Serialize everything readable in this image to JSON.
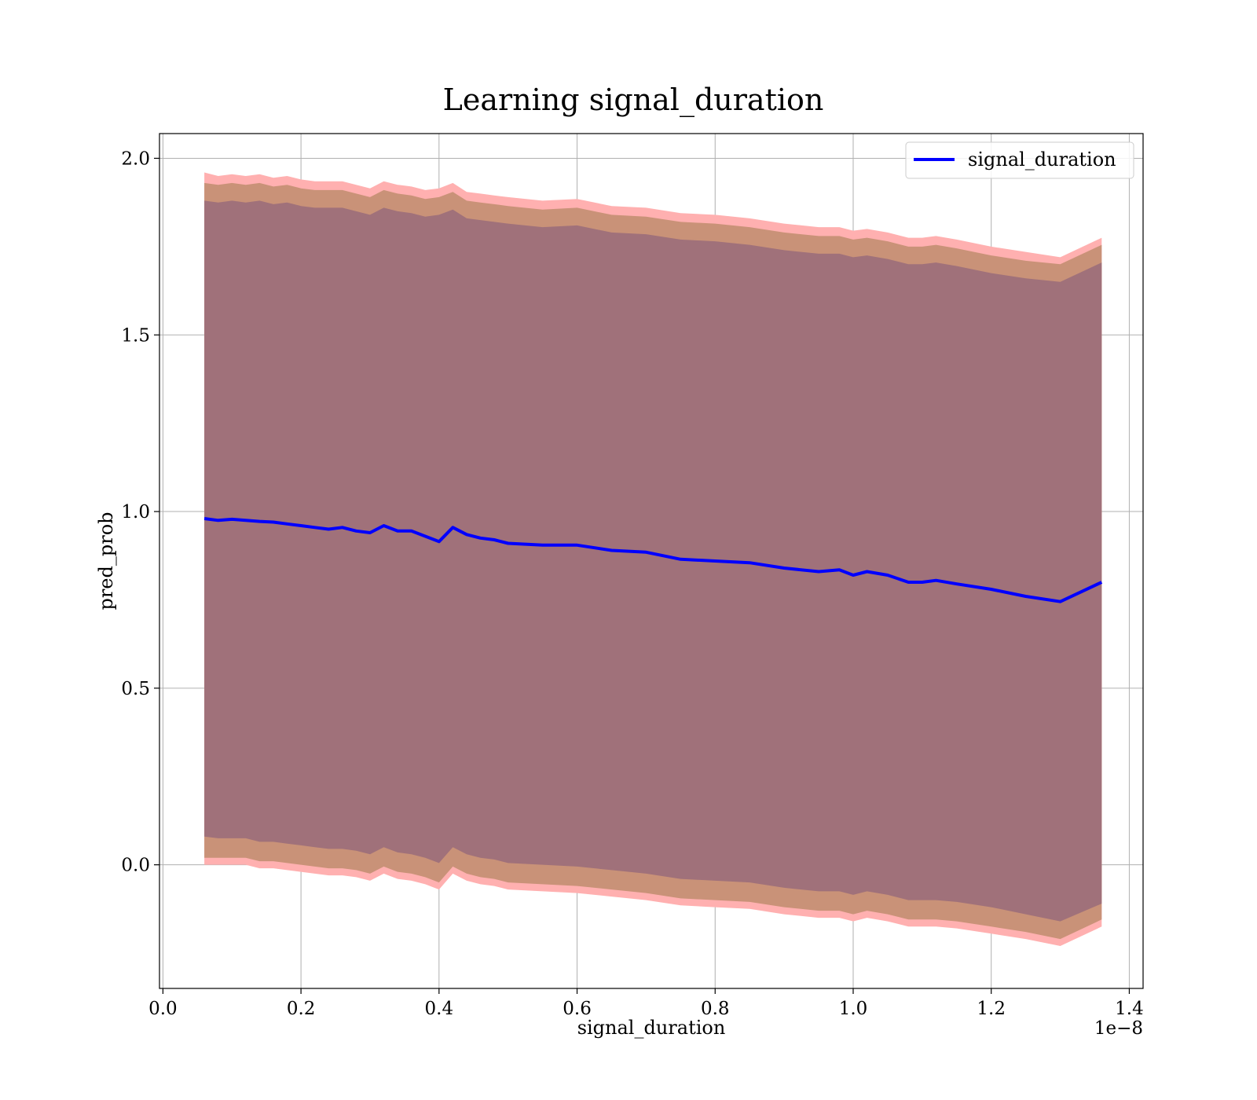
{
  "chart_data": {
    "type": "area",
    "title": "Learning signal_duration",
    "xlabel": "signal_duration",
    "ylabel": "pred_prob",
    "x_offset_label": "1e−8",
    "x_scale": 1e-08,
    "xlim": [
      -0.005,
      1.42
    ],
    "ylim": [
      -0.35,
      2.07
    ],
    "xticks": [
      0.0,
      0.2,
      0.4,
      0.6,
      0.8,
      1.0,
      1.2,
      1.4
    ],
    "xtick_labels": [
      "0.0",
      "0.2",
      "0.4",
      "0.6",
      "0.8",
      "1.0",
      "1.2",
      "1.4"
    ],
    "yticks": [
      0.0,
      0.5,
      1.0,
      1.5,
      2.0
    ],
    "ytick_labels": [
      "0.0",
      "0.5",
      "1.0",
      "1.5",
      "2.0"
    ],
    "grid": true,
    "legend": {
      "position": "upper right",
      "entries": [
        "signal_duration"
      ]
    },
    "colors": {
      "line": "#0000ff",
      "band_outer": "#ffb0b0",
      "band_middle": "#c99278",
      "band_inner": "#a0717a",
      "grid": "#b0b0b0"
    },
    "x": [
      0.06,
      0.08,
      0.1,
      0.12,
      0.14,
      0.16,
      0.18,
      0.2,
      0.22,
      0.24,
      0.26,
      0.28,
      0.3,
      0.32,
      0.34,
      0.36,
      0.38,
      0.4,
      0.42,
      0.44,
      0.46,
      0.48,
      0.5,
      0.55,
      0.6,
      0.65,
      0.7,
      0.75,
      0.8,
      0.85,
      0.9,
      0.95,
      0.98,
      1.0,
      1.02,
      1.05,
      1.08,
      1.1,
      1.12,
      1.15,
      1.2,
      1.25,
      1.3,
      1.36
    ],
    "series": [
      {
        "name": "signal_duration",
        "role": "mean",
        "values": [
          0.98,
          0.975,
          0.978,
          0.975,
          0.972,
          0.97,
          0.965,
          0.96,
          0.955,
          0.95,
          0.955,
          0.945,
          0.94,
          0.96,
          0.945,
          0.945,
          0.93,
          0.915,
          0.955,
          0.935,
          0.925,
          0.92,
          0.91,
          0.905,
          0.905,
          0.89,
          0.885,
          0.865,
          0.86,
          0.855,
          0.84,
          0.83,
          0.835,
          0.82,
          0.83,
          0.82,
          0.8,
          0.8,
          0.805,
          0.795,
          0.78,
          0.76,
          0.745,
          0.8
        ]
      },
      {
        "name": "band_outer",
        "role": "fill",
        "upper": [
          1.96,
          1.95,
          1.955,
          1.95,
          1.955,
          1.945,
          1.95,
          1.94,
          1.935,
          1.935,
          1.935,
          1.925,
          1.915,
          1.935,
          1.925,
          1.92,
          1.91,
          1.915,
          1.93,
          1.905,
          1.9,
          1.895,
          1.89,
          1.88,
          1.885,
          1.865,
          1.86,
          1.845,
          1.84,
          1.83,
          1.815,
          1.805,
          1.805,
          1.795,
          1.8,
          1.79,
          1.775,
          1.775,
          1.78,
          1.77,
          1.75,
          1.735,
          1.72,
          1.775
        ],
        "lower": [
          0.0,
          0.0,
          0.0,
          0.0,
          -0.01,
          -0.01,
          -0.015,
          -0.02,
          -0.025,
          -0.03,
          -0.03,
          -0.035,
          -0.045,
          -0.025,
          -0.04,
          -0.045,
          -0.055,
          -0.07,
          -0.025,
          -0.045,
          -0.055,
          -0.06,
          -0.07,
          -0.075,
          -0.08,
          -0.09,
          -0.1,
          -0.115,
          -0.12,
          -0.125,
          -0.14,
          -0.15,
          -0.15,
          -0.16,
          -0.15,
          -0.16,
          -0.175,
          -0.175,
          -0.175,
          -0.18,
          -0.195,
          -0.21,
          -0.23,
          -0.175
        ]
      },
      {
        "name": "band_middle",
        "role": "fill",
        "upper": [
          1.93,
          1.925,
          1.93,
          1.925,
          1.93,
          1.92,
          1.925,
          1.915,
          1.91,
          1.91,
          1.91,
          1.9,
          1.89,
          1.91,
          1.9,
          1.895,
          1.885,
          1.89,
          1.905,
          1.88,
          1.875,
          1.87,
          1.865,
          1.855,
          1.86,
          1.84,
          1.835,
          1.82,
          1.815,
          1.805,
          1.79,
          1.78,
          1.78,
          1.77,
          1.775,
          1.765,
          1.75,
          1.75,
          1.755,
          1.745,
          1.725,
          1.71,
          1.7,
          1.755
        ],
        "lower": [
          0.02,
          0.02,
          0.02,
          0.02,
          0.01,
          0.01,
          0.005,
          0.0,
          -0.005,
          -0.01,
          -0.01,
          -0.015,
          -0.025,
          -0.005,
          -0.02,
          -0.025,
          -0.035,
          -0.05,
          -0.005,
          -0.025,
          -0.035,
          -0.04,
          -0.05,
          -0.055,
          -0.06,
          -0.07,
          -0.08,
          -0.095,
          -0.1,
          -0.105,
          -0.12,
          -0.13,
          -0.13,
          -0.14,
          -0.13,
          -0.14,
          -0.155,
          -0.155,
          -0.155,
          -0.16,
          -0.175,
          -0.19,
          -0.21,
          -0.155
        ]
      },
      {
        "name": "band_inner",
        "role": "fill",
        "upper": [
          1.88,
          1.875,
          1.88,
          1.875,
          1.88,
          1.87,
          1.875,
          1.865,
          1.86,
          1.86,
          1.86,
          1.85,
          1.84,
          1.86,
          1.85,
          1.845,
          1.835,
          1.84,
          1.855,
          1.83,
          1.825,
          1.82,
          1.815,
          1.805,
          1.81,
          1.79,
          1.785,
          1.77,
          1.765,
          1.755,
          1.74,
          1.73,
          1.73,
          1.72,
          1.725,
          1.715,
          1.7,
          1.7,
          1.705,
          1.695,
          1.675,
          1.66,
          1.65,
          1.705
        ],
        "lower": [
          0.08,
          0.075,
          0.075,
          0.075,
          0.065,
          0.065,
          0.06,
          0.055,
          0.05,
          0.045,
          0.045,
          0.04,
          0.03,
          0.05,
          0.035,
          0.03,
          0.02,
          0.005,
          0.05,
          0.03,
          0.02,
          0.015,
          0.005,
          0.0,
          -0.005,
          -0.015,
          -0.025,
          -0.04,
          -0.045,
          -0.05,
          -0.065,
          -0.075,
          -0.075,
          -0.085,
          -0.075,
          -0.085,
          -0.1,
          -0.1,
          -0.1,
          -0.105,
          -0.12,
          -0.14,
          -0.16,
          -0.11
        ]
      }
    ]
  }
}
